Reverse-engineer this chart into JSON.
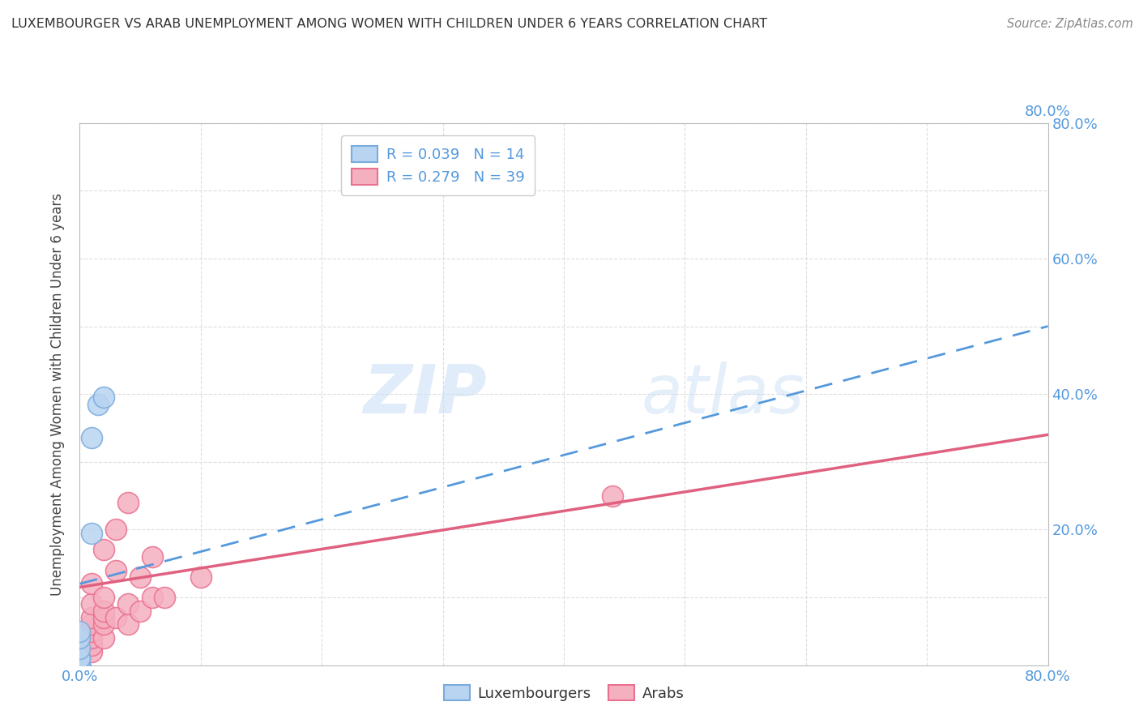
{
  "title": "LUXEMBOURGER VS ARAB UNEMPLOYMENT AMONG WOMEN WITH CHILDREN UNDER 6 YEARS CORRELATION CHART",
  "source": "Source: ZipAtlas.com",
  "ylabel": "Unemployment Among Women with Children Under 6 years",
  "xlim": [
    0.0,
    0.8
  ],
  "ylim": [
    0.0,
    0.8
  ],
  "legend_lux": "R = 0.039   N = 14",
  "legend_arab": "R = 0.279   N = 39",
  "watermark_zip": "ZIP",
  "watermark_atlas": "atlas",
  "lux_color": "#b8d4f0",
  "arab_color": "#f5b0c0",
  "lux_edge_color": "#7aabdd",
  "arab_edge_color": "#e87090",
  "lux_line_color": "#5599dd",
  "arab_line_color": "#e06080",
  "background_color": "#ffffff",
  "tick_color": "#5599dd",
  "grid_color": "#dddddd",
  "lux_trend": [
    0.0,
    0.8,
    0.12,
    0.5
  ],
  "arab_trend": [
    0.0,
    0.8,
    0.115,
    0.34
  ],
  "lux_x": [
    0.0,
    0.0,
    0.0,
    0.0,
    0.0,
    0.0,
    0.0,
    0.0,
    0.0,
    0.0,
    0.01,
    0.01,
    0.015,
    0.02
  ],
  "lux_y": [
    0.0,
    0.0,
    0.0,
    0.0,
    0.0,
    0.01,
    0.01,
    0.025,
    0.04,
    0.05,
    0.195,
    0.335,
    0.385,
    0.395
  ],
  "arab_x": [
    0.0,
    0.0,
    0.0,
    0.0,
    0.0,
    0.0,
    0.0,
    0.0,
    0.0,
    0.0,
    0.0,
    0.0,
    0.01,
    0.01,
    0.01,
    0.01,
    0.01,
    0.01,
    0.01,
    0.01,
    0.02,
    0.02,
    0.02,
    0.02,
    0.02,
    0.02,
    0.03,
    0.03,
    0.03,
    0.04,
    0.04,
    0.04,
    0.05,
    0.05,
    0.06,
    0.06,
    0.07,
    0.1,
    0.44
  ],
  "arab_y": [
    0.0,
    0.0,
    0.0,
    0.0,
    0.0,
    0.0,
    0.0,
    0.0,
    0.0,
    0.01,
    0.01,
    0.02,
    0.02,
    0.03,
    0.04,
    0.05,
    0.06,
    0.07,
    0.09,
    0.12,
    0.04,
    0.06,
    0.07,
    0.08,
    0.1,
    0.17,
    0.07,
    0.14,
    0.2,
    0.06,
    0.09,
    0.24,
    0.08,
    0.13,
    0.1,
    0.16,
    0.1,
    0.13,
    0.25
  ]
}
